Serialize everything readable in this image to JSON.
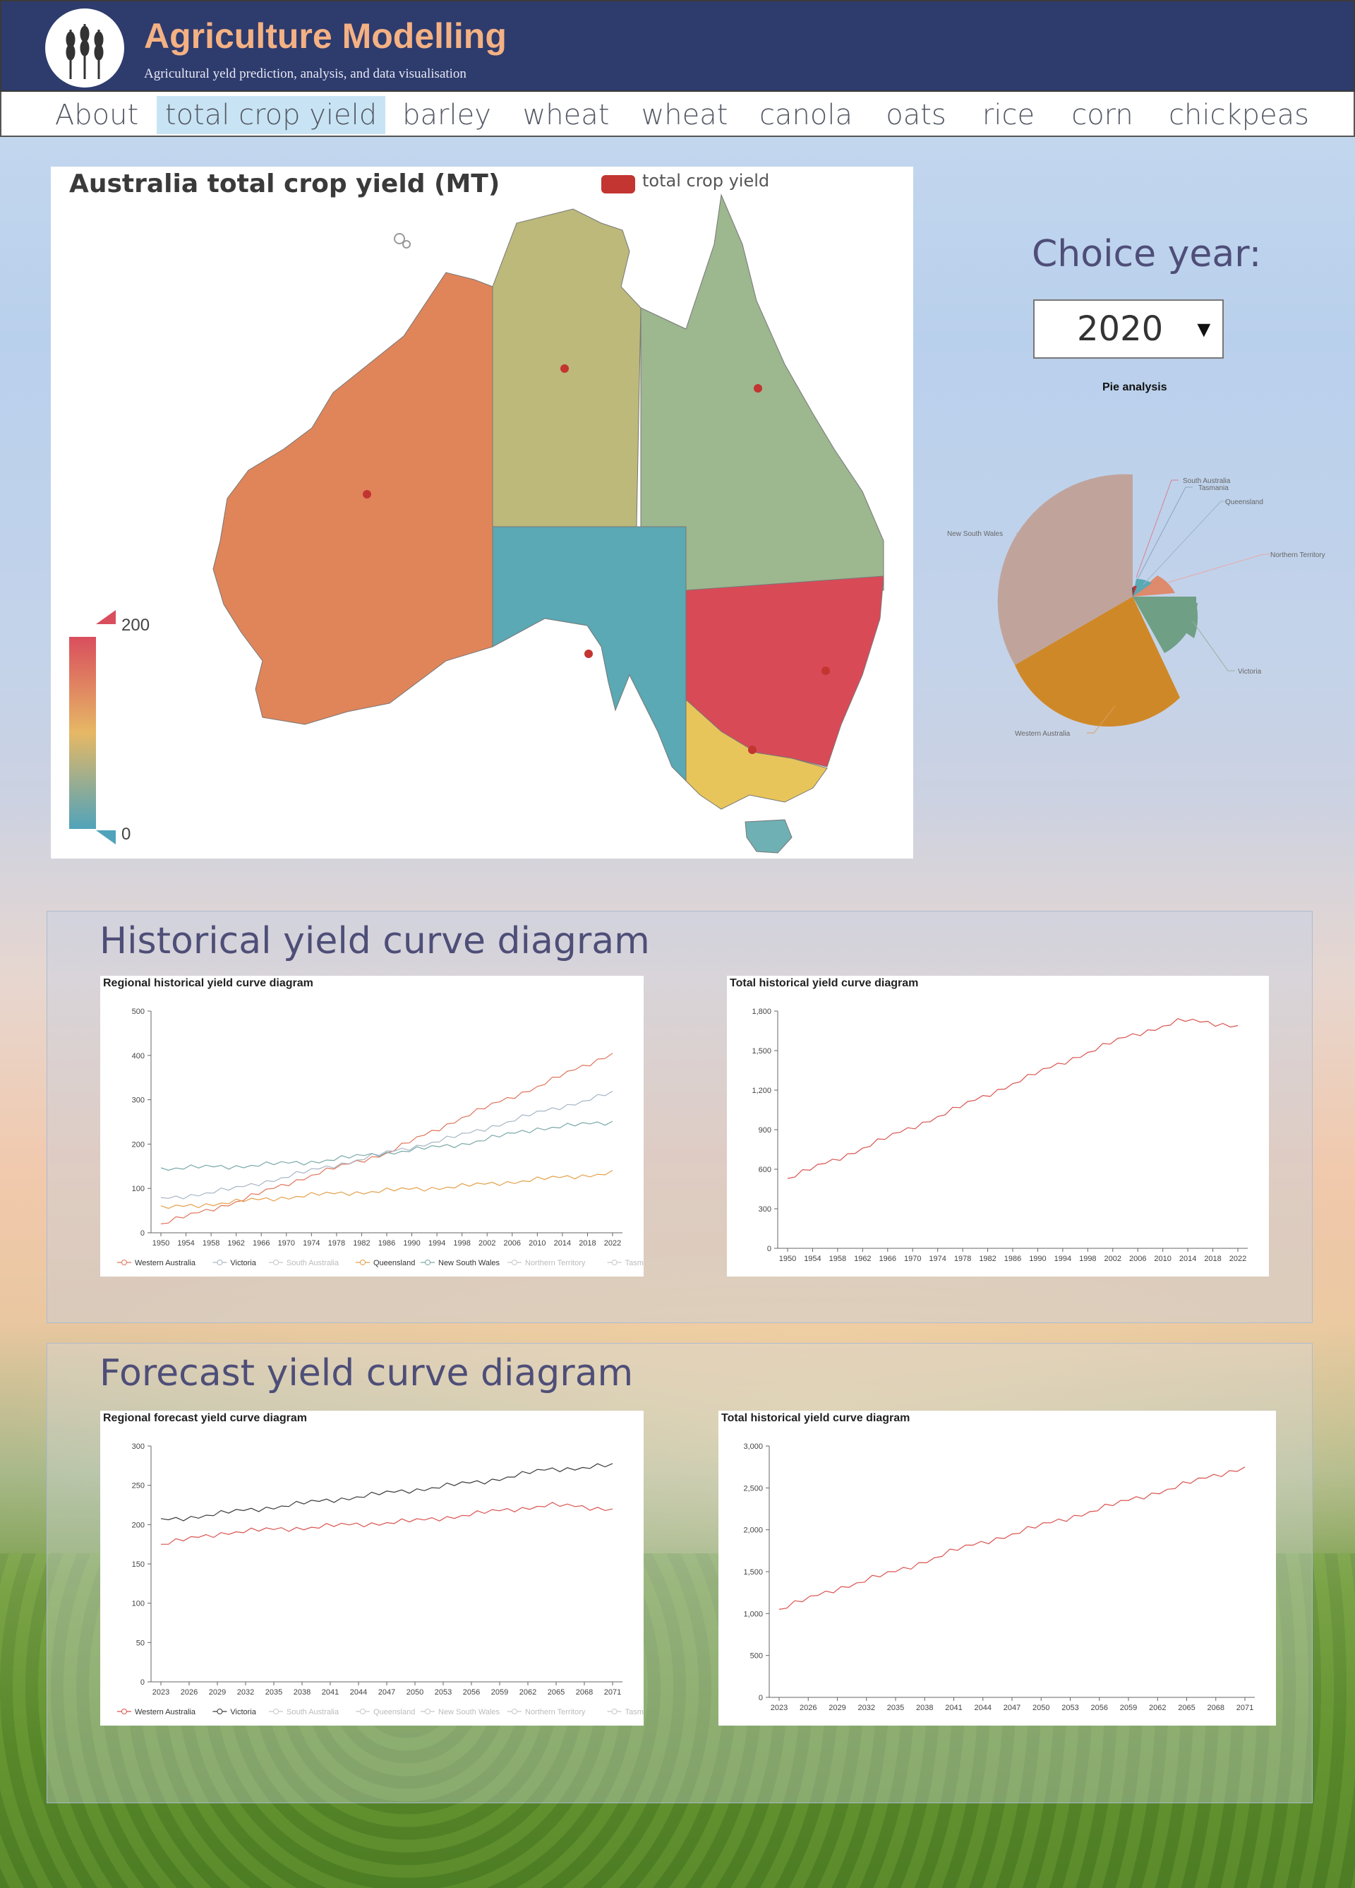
{
  "header": {
    "title": "Agriculture Modelling",
    "subtitle": "Agricultural yeld prediction, analysis, and data visualisation",
    "logo_icon": "wheat-icon"
  },
  "nav": {
    "tabs": [
      {
        "label": "About",
        "active": false
      },
      {
        "label": "total crop yield",
        "active": true
      },
      {
        "label": "barley",
        "active": false
      },
      {
        "label": "wheat",
        "active": false
      },
      {
        "label": "wheat",
        "active": false
      },
      {
        "label": "canola",
        "active": false
      },
      {
        "label": "oats",
        "active": false
      },
      {
        "label": "rice",
        "active": false
      },
      {
        "label": "corn",
        "active": false
      },
      {
        "label": "chickpeas",
        "active": false
      }
    ]
  },
  "map": {
    "title": "Australia total crop yield   (MT)",
    "legend": "total crop yield",
    "visual_map": {
      "max": "200",
      "min": "0"
    },
    "colors": {
      "legend": "#c23531",
      "high": "#d94e5d",
      "mid": "#e6b865",
      "low": "#50a3ba"
    }
  },
  "year_picker": {
    "label": "Choice year:",
    "selected": "2020"
  },
  "pie": {
    "title": "Pie analysis",
    "labels": [
      "South Australia",
      "Tasmania",
      "Queensland",
      "Northern Territory",
      "New South Wales",
      "Victoria",
      "Western Australia"
    ]
  },
  "sections": {
    "historical": "Historical yield curve diagram",
    "forecast": "Forecast yield curve diagram"
  },
  "chart_data": [
    {
      "type": "line",
      "title": "Regional historical yield curve diagram",
      "x_ticks": [
        "1950",
        "1954",
        "1958",
        "1962",
        "1966",
        "1970",
        "1974",
        "1978",
        "1982",
        "1986",
        "1990",
        "1994",
        "1998",
        "2002",
        "2006",
        "2010",
        "2014",
        "2018",
        "2022"
      ],
      "y_ticks": [
        "0",
        "100",
        "200",
        "300",
        "400",
        "500"
      ],
      "ylim": [
        0,
        500
      ],
      "legend": [
        "Western Australia",
        "Victoria",
        "South Australia",
        "Queensland",
        "New South Wales",
        "Northern Territory",
        "Tasmania"
      ],
      "series": [
        {
          "name": "Western Australia",
          "color": "#e0745a",
          "values": [
            20,
            70,
            130,
            180,
            260,
            330,
            405
          ]
        },
        {
          "name": "Victoria",
          "color": "#a8b6c4",
          "values": [
            75,
            100,
            140,
            180,
            220,
            270,
            315
          ]
        },
        {
          "name": "New South Wales",
          "color": "#7aa8a8",
          "values": [
            145,
            150,
            160,
            180,
            200,
            235,
            250
          ]
        },
        {
          "name": "Queensland",
          "color": "#e3a04a",
          "values": [
            55,
            70,
            85,
            95,
            105,
            120,
            135
          ]
        }
      ]
    },
    {
      "type": "line",
      "title": "Total historical yield curve diagram",
      "x_ticks": [
        "1950",
        "1954",
        "1958",
        "1962",
        "1966",
        "1970",
        "1974",
        "1978",
        "1982",
        "1986",
        "1990",
        "1994",
        "1998",
        "2002",
        "2006",
        "2010",
        "2014",
        "2018",
        "2022"
      ],
      "y_ticks": [
        "0",
        "300",
        "600",
        "900",
        "1,200",
        "1,500",
        "1,800"
      ],
      "ylim": [
        0,
        1800
      ],
      "series": [
        {
          "color": "#d9534f",
          "values": [
            530,
            700,
            880,
            1060,
            1250,
            1430,
            1600,
            1730,
            1690
          ]
        }
      ]
    },
    {
      "type": "line",
      "title": "Regional forecast yield curve diagram",
      "x_ticks": [
        "2023",
        "2026",
        "2029",
        "2032",
        "2035",
        "2038",
        "2041",
        "2044",
        "2047",
        "2050",
        "2053",
        "2056",
        "2059",
        "2062",
        "2065",
        "2068",
        "2071"
      ],
      "y_ticks": [
        "0",
        "50",
        "100",
        "150",
        "200",
        "250",
        "300"
      ],
      "ylim": [
        0,
        300
      ],
      "legend": [
        "Western Australia",
        "Victoria",
        "South Australia",
        "Queensland",
        "New South Wales",
        "Northern Territory",
        "Tasmania"
      ],
      "series": [
        {
          "name": "Western Australia",
          "color": "#d9534f",
          "values": [
            175,
            190,
            195,
            200,
            205,
            215,
            225,
            220
          ]
        },
        {
          "name": "Victoria",
          "color": "#3a3a3a",
          "values": [
            205,
            215,
            225,
            235,
            245,
            255,
            270,
            275
          ]
        }
      ]
    },
    {
      "type": "line",
      "title": "Total historical yield curve diagram",
      "x_ticks": [
        "2023",
        "2026",
        "2029",
        "2032",
        "2035",
        "2038",
        "2041",
        "2044",
        "2047",
        "2050",
        "2053",
        "2056",
        "2059",
        "2062",
        "2065",
        "2068",
        "2071"
      ],
      "y_ticks": [
        "0",
        "500",
        "1,000",
        "1,500",
        "2,000",
        "2,500",
        "3,000"
      ],
      "ylim": [
        0,
        3000
      ],
      "series": [
        {
          "color": "#d9534f",
          "values": [
            1050,
            1300,
            1500,
            1750,
            1950,
            2150,
            2350,
            2550,
            2750
          ]
        }
      ]
    }
  ]
}
